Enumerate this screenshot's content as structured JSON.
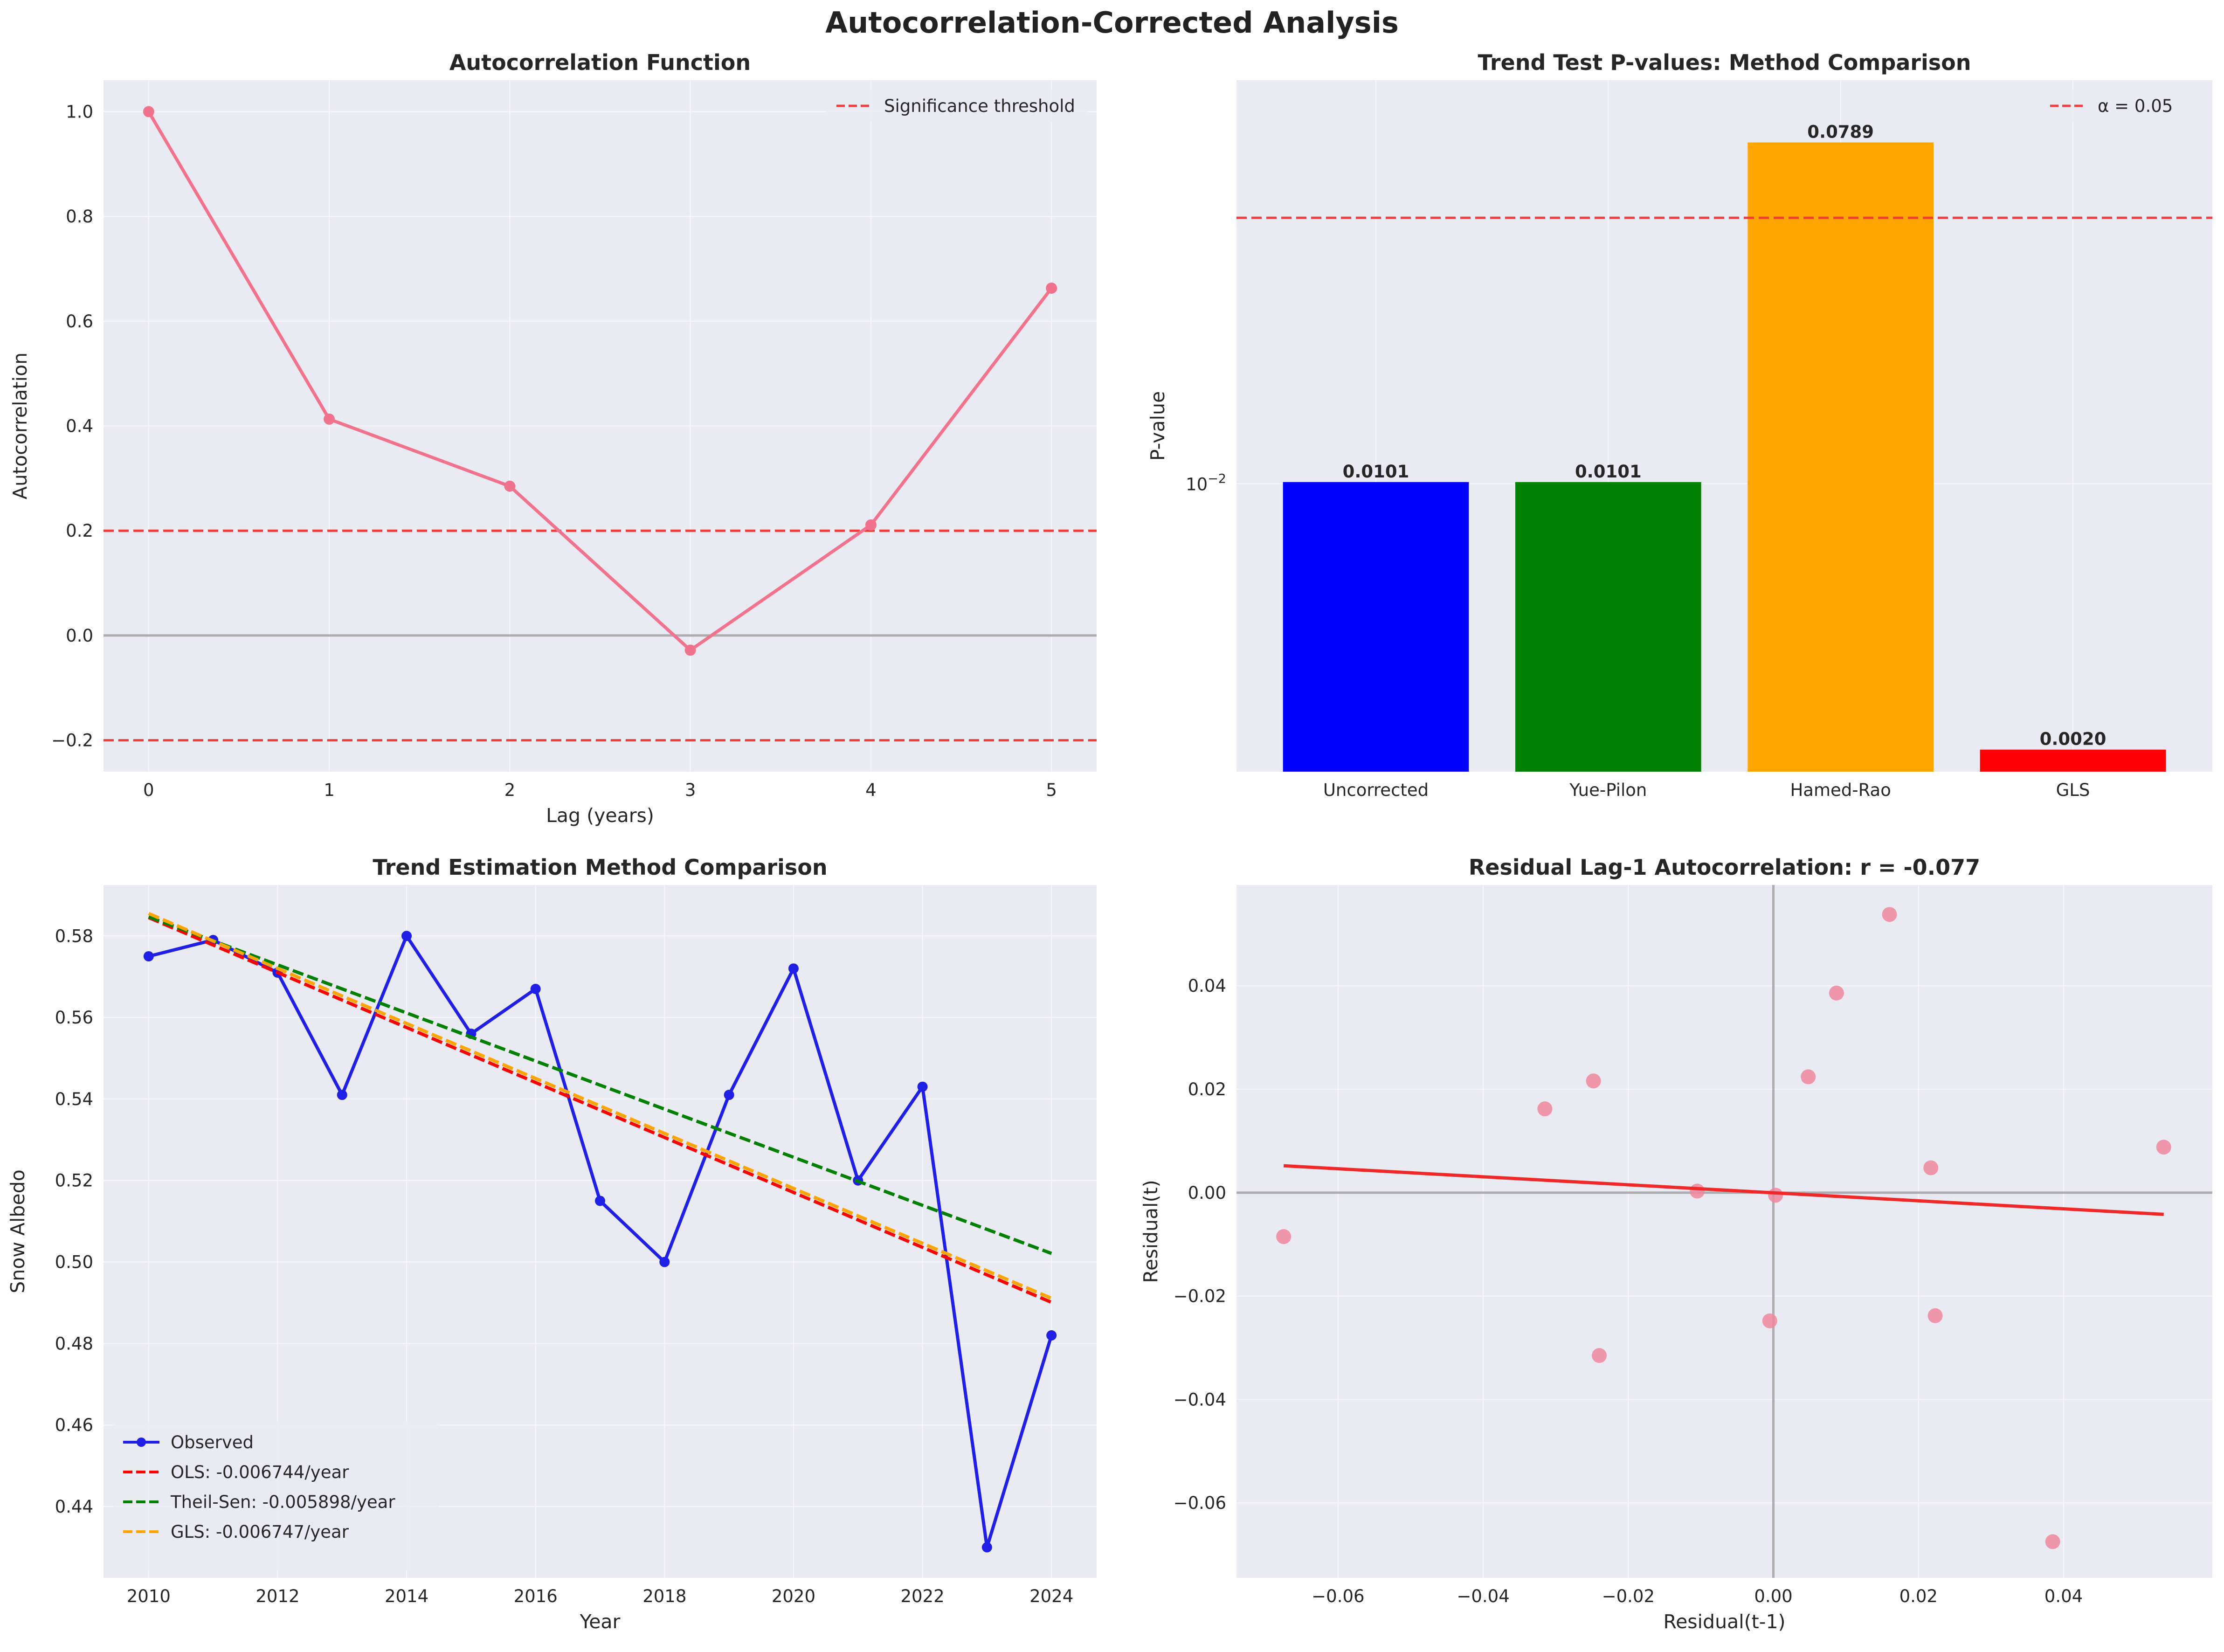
{
  "title": "Autocorrelation-Corrected Analysis",
  "chart_data": [
    {
      "type": "line",
      "title": "Autocorrelation Function",
      "xlabel": "Lag (years)",
      "ylabel": "Autocorrelation",
      "xlim": [
        -0.25,
        5.25
      ],
      "ylim": [
        -0.26,
        1.06
      ],
      "xticks": [
        0,
        1,
        2,
        3,
        4,
        5
      ],
      "yticks": [
        -0.2,
        0.0,
        0.2,
        0.4,
        0.6,
        0.8,
        1.0
      ],
      "ytick_labels": [
        "−0.2",
        "0.0",
        "0.2",
        "0.4",
        "0.6",
        "0.8",
        "1.0"
      ],
      "x": [
        0,
        1,
        2,
        3,
        4,
        5
      ],
      "y": [
        1.0,
        0.413,
        0.285,
        -0.028,
        0.211,
        0.663
      ],
      "thresholds": [
        0.2,
        -0.2
      ],
      "zero_line": 0.0,
      "legend": [
        {
          "label": "Significance threshold",
          "color": "#f03c3c",
          "style": "dashed"
        }
      ],
      "legend_position": "top-right",
      "line_color": "#f0728c",
      "grid": true
    },
    {
      "type": "bar",
      "title": "Trend Test P-values: Method Comparison",
      "ylabel": "P-value",
      "yscale": "log",
      "ylim": [
        0.00175,
        0.115
      ],
      "ytick": {
        "value": 0.01,
        "base": "10",
        "exp": "−2"
      },
      "categories": [
        "Uncorrected",
        "Yue-Pilon",
        "Hamed-Rao",
        "GLS"
      ],
      "values": [
        0.0101,
        0.0101,
        0.0789,
        0.002
      ],
      "value_labels": [
        "0.0101",
        "0.0101",
        "0.0789",
        "0.0020"
      ],
      "colors": [
        "#0000ff",
        "#008000",
        "#ffa500",
        "#ff0000"
      ],
      "alpha_line": 0.05,
      "legend": [
        {
          "label": "α = 0.05",
          "color": "#f03c3c",
          "style": "dashed"
        }
      ],
      "legend_position": "top-right",
      "grid": true
    },
    {
      "type": "line",
      "title": "Trend Estimation Method Comparison",
      "xlabel": "Year",
      "ylabel": "Snow Albedo",
      "xlim": [
        2009.3,
        2024.7
      ],
      "ylim": [
        0.4225,
        0.5925
      ],
      "xticks": [
        2010,
        2012,
        2014,
        2016,
        2018,
        2020,
        2022,
        2024
      ],
      "yticks": [
        0.44,
        0.46,
        0.48,
        0.5,
        0.52,
        0.54,
        0.56,
        0.58
      ],
      "ytick_labels": [
        "0.44",
        "0.46",
        "0.48",
        "0.50",
        "0.52",
        "0.54",
        "0.56",
        "0.58"
      ],
      "x": [
        2010,
        2011,
        2012,
        2013,
        2014,
        2015,
        2016,
        2017,
        2018,
        2019,
        2020,
        2021,
        2022,
        2023,
        2024
      ],
      "series": [
        {
          "name": "Observed",
          "values": [
            0.575,
            0.579,
            0.571,
            0.541,
            0.58,
            0.556,
            0.567,
            0.515,
            0.5,
            0.541,
            0.572,
            0.52,
            0.543,
            0.43,
            0.482
          ],
          "color": "#1f1fe6",
          "style": "solid-markers"
        },
        {
          "name": "OLS: -0.006744/year",
          "trend": [
            0.5845,
            0.4901
          ],
          "color": "#ff0000",
          "style": "dashed"
        },
        {
          "name": "Theil-Sen: -0.005898/year",
          "trend": [
            0.5847,
            0.5021
          ],
          "color": "#008000",
          "style": "dashed"
        },
        {
          "name": "GLS: -0.006747/year",
          "trend": [
            0.5855,
            0.4911
          ],
          "color": "#ffa500",
          "style": "dashed"
        }
      ],
      "legend_position": "bottom-left",
      "grid": true
    },
    {
      "type": "scatter",
      "title": "Residual Lag-1 Autocorrelation: r = -0.077",
      "xlabel": "Residual(t-1)",
      "ylabel": "Residual(t)",
      "xlim": [
        -0.074,
        0.0605
      ],
      "ylim": [
        -0.0745,
        0.0595
      ],
      "xticks": [
        -0.06,
        -0.04,
        -0.02,
        0.0,
        0.02,
        0.04
      ],
      "xtick_labels": [
        "−0.06",
        "−0.04",
        "−0.02",
        "0.00",
        "0.02",
        "0.04"
      ],
      "yticks": [
        -0.06,
        -0.04,
        -0.02,
        0.0,
        0.02,
        0.04
      ],
      "ytick_labels": [
        "−0.06",
        "−0.04",
        "−0.02",
        "0.00",
        "0.02",
        "0.04"
      ],
      "points": [
        [
          -0.0675,
          -0.0085
        ],
        [
          -0.0315,
          0.0162
        ],
        [
          -0.0248,
          0.0216
        ],
        [
          -0.024,
          -0.0315
        ],
        [
          -0.0105,
          0.0003
        ],
        [
          -0.0005,
          -0.0248
        ],
        [
          0.0003,
          -0.0005
        ],
        [
          0.0048,
          0.0224
        ],
        [
          0.0087,
          0.0386
        ],
        [
          0.016,
          0.0538
        ],
        [
          0.0217,
          0.0048
        ],
        [
          0.0223,
          -0.0238
        ],
        [
          0.0385,
          -0.0675
        ],
        [
          0.0538,
          0.0088
        ]
      ],
      "fit_line": [
        [
          -0.0675,
          0.0052
        ],
        [
          0.0538,
          -0.0042
        ]
      ],
      "point_color": "#f0879f",
      "fit_color": "#f02828",
      "grid": true
    }
  ]
}
